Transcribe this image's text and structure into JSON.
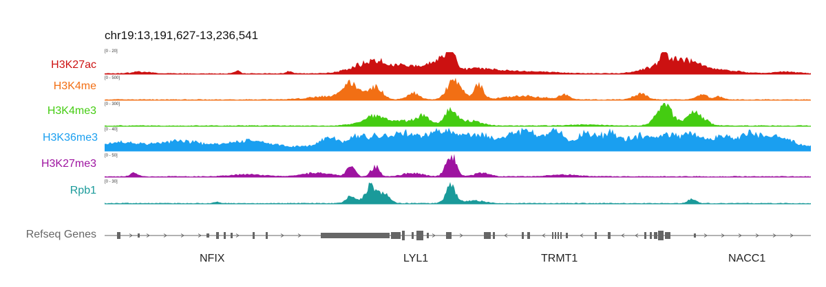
{
  "locus": "chr19:13,191,627-13,236,541",
  "tracks": [
    {
      "label": "H3K27ac",
      "range": "[0 - 20]",
      "color": "#cc1111"
    },
    {
      "label": "H3K4me",
      "range": "[0 - 500]",
      "color": "#f26f14"
    },
    {
      "label": "H3K4me3",
      "range": "[0 - 300]",
      "color": "#44cc11"
    },
    {
      "label": "H3K36me3",
      "range": "[0 - 40]",
      "color": "#1a9ff0"
    },
    {
      "label": "H3K27me3",
      "range": "[0 - 50]",
      "color": "#9e13a0"
    },
    {
      "label": "Rpb1",
      "range": "[0 - 30]",
      "color": "#1a9a9a"
    }
  ],
  "genes_track": {
    "label": "Refseq Genes",
    "color": "#666666",
    "genes": [
      "NFIX",
      "LYL1",
      "TRMT1",
      "NACC1"
    ]
  }
}
